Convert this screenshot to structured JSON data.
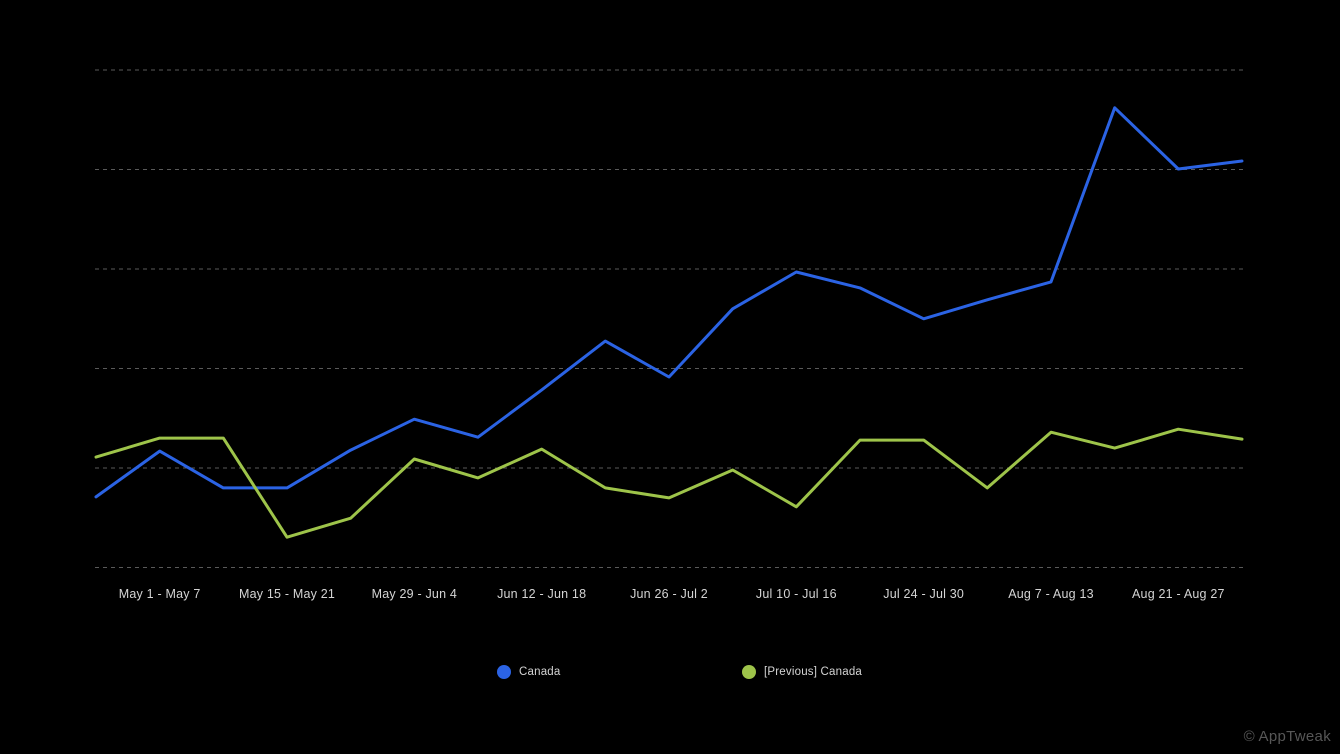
{
  "chart_data": {
    "type": "line",
    "title": "",
    "x_axis": {
      "points_per_series": 19,
      "tick_labels": [
        "May 1 - May 7",
        "May 15 - May 21",
        "May 29 - Jun 4",
        "Jun 12 - Jun 18",
        "Jun 26 - Jul 2",
        "Jul 10 - Jul 16",
        "Jul 24 - Jul 30",
        "Aug 7 - Aug 13",
        "Aug 21 - Aug 27"
      ],
      "tick_point_indices": [
        1,
        3,
        5,
        7,
        9,
        11,
        13,
        15,
        17
      ],
      "note": "weekly data points; every second week labeled"
    },
    "y_axis": {
      "labels_visible": false,
      "min": 0,
      "max": 100,
      "gridline_values": [
        0,
        20,
        40,
        60,
        80,
        100
      ],
      "unit": "relative scale (no tick labels shown)"
    },
    "grid": "horizontal-dashed",
    "legend_position": "bottom",
    "series": [
      {
        "name": "Canada",
        "color": "#2b63e4",
        "values": [
          14.2,
          23.4,
          16.0,
          16.0,
          23.6,
          29.8,
          26.2,
          35.7,
          45.5,
          38.3,
          52.0,
          59.4,
          56.2,
          50.0,
          53.8,
          57.4,
          92.4,
          80.1,
          81.7
        ]
      },
      {
        "name": "[Previous] Canada",
        "color": "#9ec44a",
        "values": [
          22.2,
          26.0,
          26.0,
          6.1,
          9.9,
          21.8,
          18.0,
          23.8,
          16.0,
          14.0,
          19.6,
          12.2,
          25.6,
          25.6,
          16.0,
          27.2,
          24.0,
          27.8,
          25.8
        ]
      }
    ]
  },
  "legend": {
    "items": [
      {
        "label": "Canada",
        "color": "#2b63e4"
      },
      {
        "label": "[Previous] Canada",
        "color": "#9ec44a"
      }
    ]
  },
  "watermark": "© AppTweak",
  "colors": {
    "background": "#000000",
    "gridline": "#5a5a5a",
    "axis_label": "#d4d4d4",
    "watermark": "#575757",
    "series_canada": "#2b63e4",
    "series_previous_canada": "#9ec44a"
  }
}
